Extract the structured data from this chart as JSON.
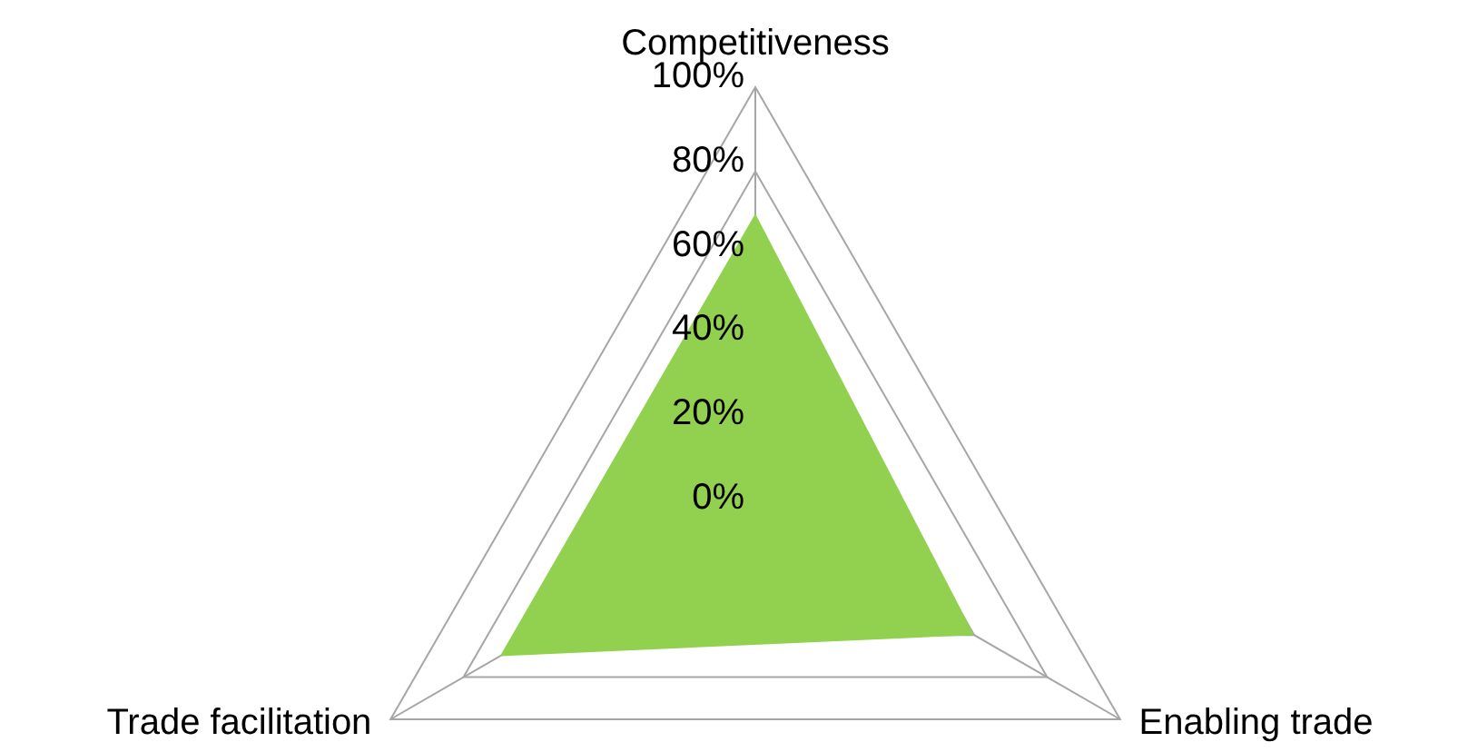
{
  "chart_data": {
    "type": "radar",
    "categories": [
      "Competitiveness",
      "Enabling trade",
      "Trade facilitation"
    ],
    "series": [
      {
        "color": "#92d050",
        "values": [
          70,
          60,
          70
        ]
      }
    ],
    "ylim": [
      0,
      100
    ],
    "yticks": [
      {
        "value": 0,
        "label": "0%"
      },
      {
        "value": 20,
        "label": "20%"
      },
      {
        "value": 40,
        "label": "40%"
      },
      {
        "value": 60,
        "label": "60%"
      },
      {
        "value": 80,
        "label": "80%"
      },
      {
        "value": 100,
        "label": "100%"
      }
    ],
    "grid": true,
    "legend": false
  }
}
